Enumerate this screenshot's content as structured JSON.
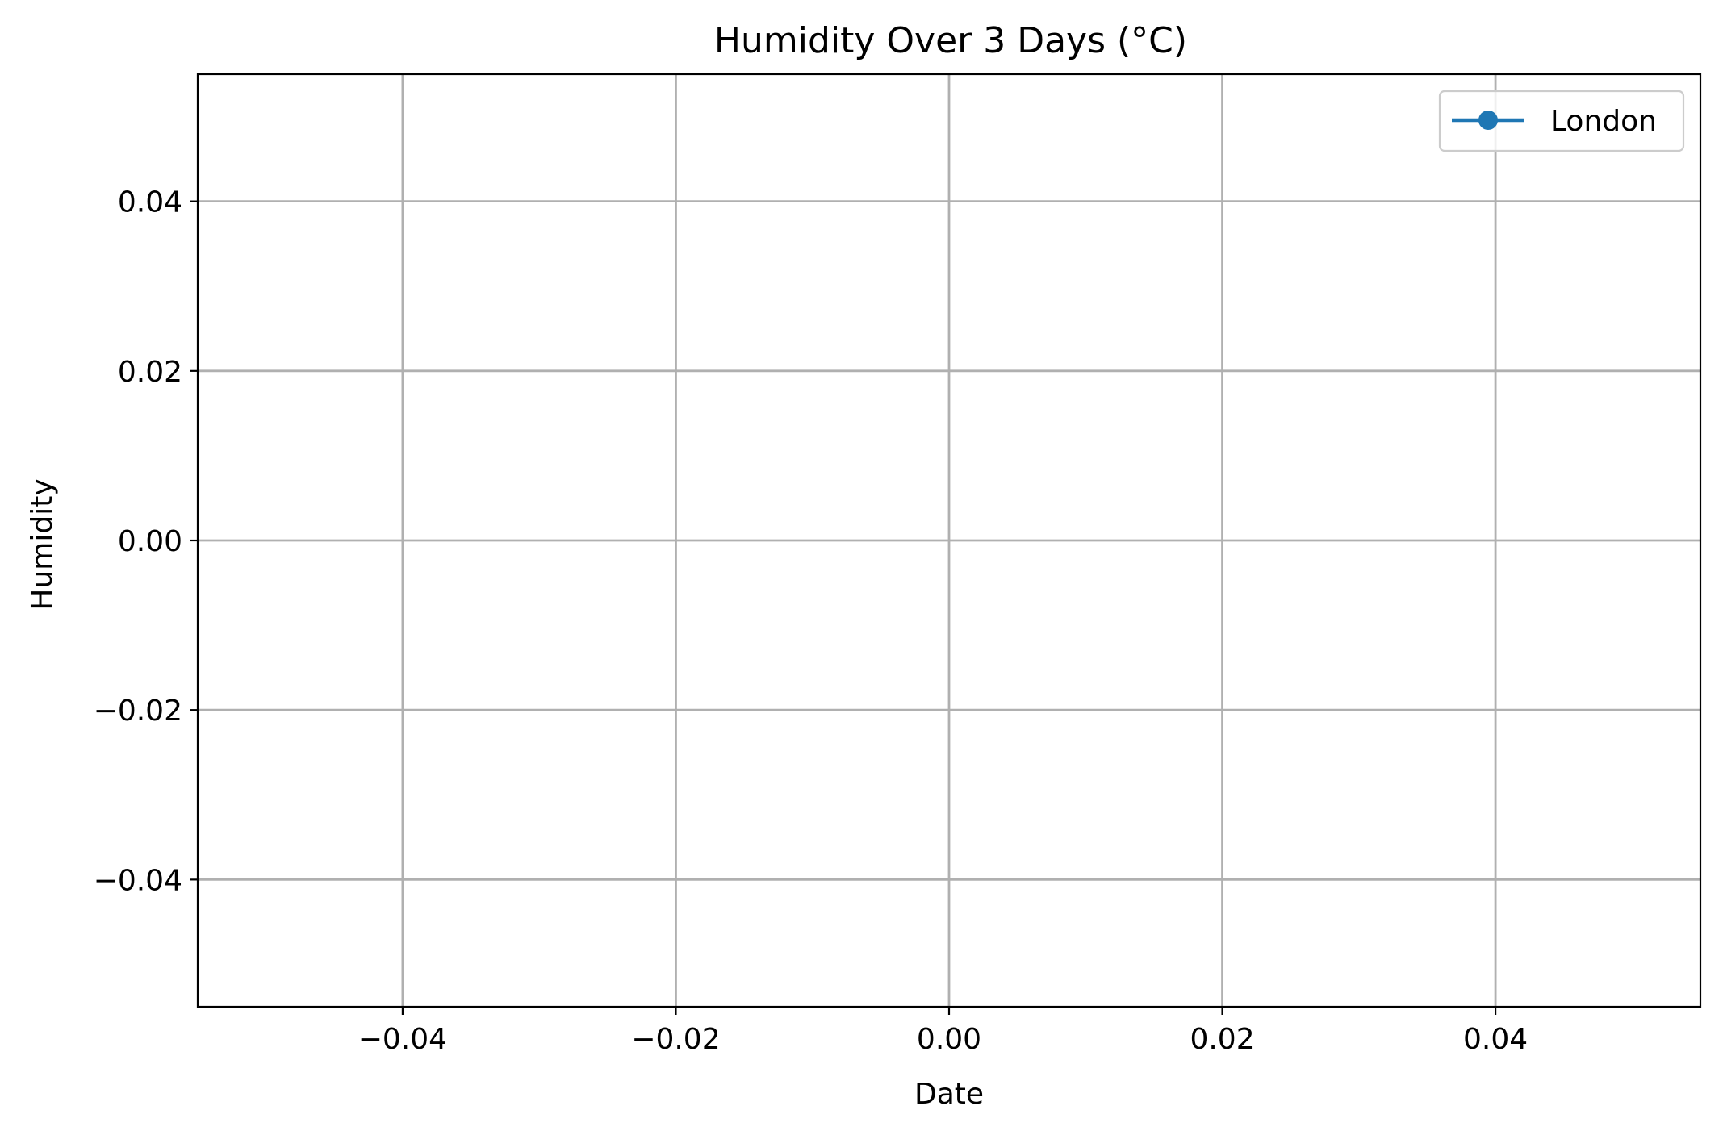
{
  "chart_data": {
    "type": "line",
    "title": "Humidity Over 3 Days (°C)",
    "xlabel": "Date",
    "ylabel": "Humidity",
    "xlim": [
      -0.055,
      0.055
    ],
    "ylim": [
      -0.055,
      0.055
    ],
    "x_ticks": [
      -0.04,
      -0.02,
      0.0,
      0.02,
      0.04
    ],
    "y_ticks": [
      -0.04,
      -0.02,
      0.0,
      0.02,
      0.04
    ],
    "x_tick_labels": [
      "−0.04",
      "−0.02",
      "0.00",
      "0.02",
      "0.04"
    ],
    "y_tick_labels": [
      "−0.04",
      "−0.02",
      "0.00",
      "0.02",
      "0.04"
    ],
    "grid": true,
    "legend_position": "top-right",
    "series": [
      {
        "name": "London",
        "color": "#1f77b4",
        "marker": "circle",
        "x": [],
        "y": []
      }
    ]
  }
}
